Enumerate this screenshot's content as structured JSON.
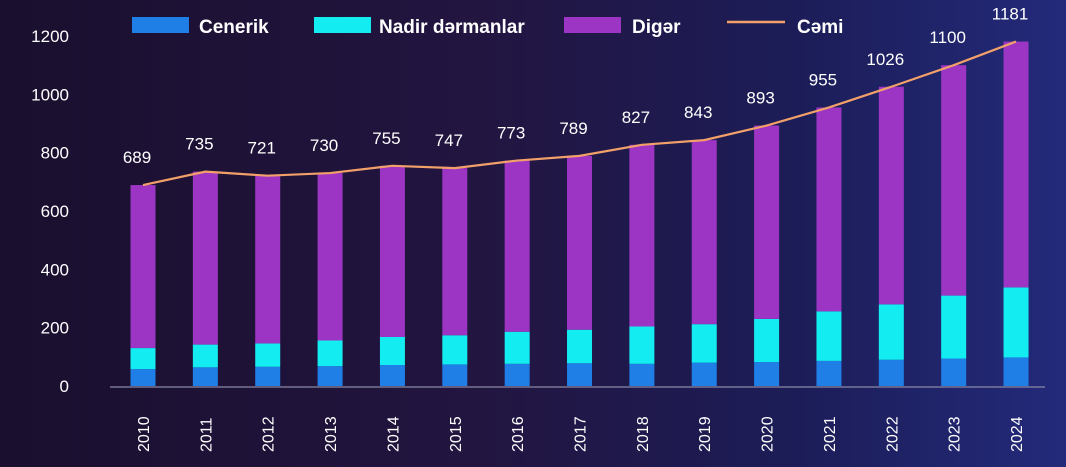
{
  "chart_data": {
    "type": "bar",
    "stacked": true,
    "categories": [
      "2010",
      "2011",
      "2012",
      "2013",
      "2014",
      "2015",
      "2016",
      "2017",
      "2018",
      "2019",
      "2020",
      "2021",
      "2022",
      "2023",
      "2024"
    ],
    "series": [
      {
        "name": "Cenerik",
        "color": "#1f7fe6",
        "values": [
          58,
          64,
          66,
          68,
          72,
          74,
          76,
          78,
          76,
          80,
          82,
          86,
          90,
          94,
          98
        ]
      },
      {
        "name": "Nadir dərmanlar",
        "color": "#13ecf0",
        "values": [
          72,
          78,
          80,
          88,
          96,
          100,
          110,
          115,
          128,
          132,
          148,
          170,
          190,
          216,
          240
        ]
      },
      {
        "name": "Digər",
        "color": "#9c35c4",
        "values": [
          559,
          593,
          575,
          574,
          587,
          573,
          587,
          596,
          623,
          631,
          663,
          699,
          746,
          790,
          843
        ]
      }
    ],
    "line": {
      "name": "Cəmi",
      "color": "#f2a06a",
      "values": [
        689,
        735,
        721,
        730,
        755,
        747,
        773,
        789,
        827,
        843,
        893,
        955,
        1026,
        1100,
        1181
      ]
    },
    "total_labels": [
      "689",
      "735",
      "721",
      "730",
      "755",
      "747",
      "773",
      "789",
      "827",
      "843",
      "893",
      "955",
      "1026",
      "1100",
      "1181"
    ],
    "ylim": [
      0,
      1200
    ],
    "yticks": [
      0,
      200,
      400,
      600,
      800,
      1000,
      1200
    ],
    "ytick_labels": [
      "0",
      "200",
      "400",
      "600",
      "800",
      "1000",
      "1200"
    ],
    "xtick_rotation": -90,
    "title": "",
    "xlabel": "",
    "ylabel": "",
    "legend_position": "top",
    "grid": false
  }
}
